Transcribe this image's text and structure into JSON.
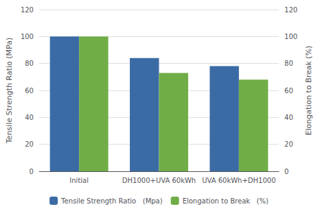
{
  "chart_data": {
    "type": "bar",
    "categories": [
      "Initial",
      "DH1000+UVA 60kWh",
      "UVA 60kWh+DH1000"
    ],
    "series": [
      {
        "name": "Tensile Strength Ratio   (Mpa)",
        "color": "#3B6BA5",
        "values": [
          100,
          84,
          78
        ]
      },
      {
        "name": "Elongation to Break   (%)",
        "color": "#70AD47",
        "values": [
          100,
          73,
          68
        ]
      }
    ],
    "ylabel": "Tensile Strength Ratio (MPa)",
    "y2label": "Elongation to Break (%)",
    "ylim": [
      0,
      120
    ],
    "yticks": [
      0,
      20,
      40,
      60,
      80,
      100,
      120
    ],
    "y2lim": [
      0,
      120
    ],
    "y2ticks": [
      0,
      20,
      40,
      60,
      80,
      100,
      120
    ],
    "grid": true,
    "legend": "bottom"
  }
}
